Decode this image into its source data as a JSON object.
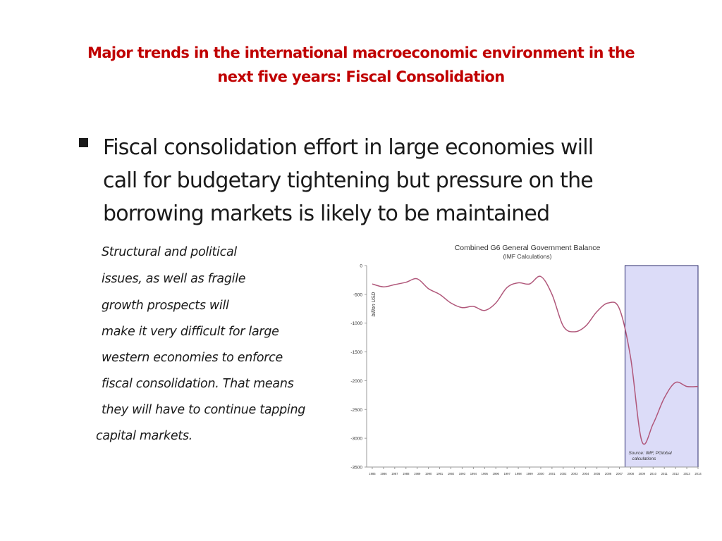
{
  "slide": {
    "title_line1": "Major trends in the international macroeconomic environment in the",
    "title_line2": "next five years:  Fiscal Consolidation",
    "bullet_line1": "Fiscal consolidation effort in large economies will",
    "bullet_line2": "call for budgetary tightening but pressure on the",
    "bullet_line3": "borrowing markets  is likely to be maintained",
    "body_lines": [
      "Structural and political",
      "issues, as well as fragile",
      "growth prospects will",
      "make it very difficult for large",
      "western economies to enforce",
      "fiscal consolidation. That means",
      "they will have to continue tapping",
      "capital markets."
    ]
  },
  "colors": {
    "title": "#c00000",
    "line": "#b0577a",
    "forecast_fill": "#dcdcf8",
    "forecast_border": "#2b2b6b"
  },
  "chart_data": {
    "type": "line",
    "title": "Combined G6 General Government Balance",
    "subtitle": "(IMF Calculations)",
    "ylabel": "billion USD",
    "ylim": [
      -3500,
      0
    ],
    "yticks": [
      "0",
      "-500",
      "-1000",
      "-1500",
      "-2000",
      "-2500",
      "-3000",
      "-3500"
    ],
    "ytick_values": [
      0,
      -500,
      -1000,
      -1500,
      -2000,
      -2500,
      -3000,
      -3500
    ],
    "categories": [
      "1985",
      "1986",
      "1987",
      "1988",
      "1989",
      "1990",
      "1991",
      "1992",
      "1993",
      "1994",
      "1995",
      "1996",
      "1997",
      "1998",
      "1999",
      "2000",
      "2001",
      "2002",
      "2003",
      "2004",
      "2005",
      "2006",
      "2007",
      "2008",
      "2009",
      "2010",
      "2011",
      "2012",
      "2013",
      "2014"
    ],
    "series": [
      {
        "values": [
          -320,
          -370,
          -330,
          -290,
          -230,
          -400,
          -500,
          -650,
          -730,
          -710,
          -780,
          -650,
          -380,
          -300,
          -320,
          -190,
          -500,
          -1050,
          -1150,
          -1050,
          -800,
          -650,
          -750,
          -1600,
          -3050,
          -2750,
          -2300,
          -2030,
          -2100,
          -2100
        ]
      }
    ],
    "annotation": "Source: IMF, PGlobal calculations",
    "shaded_range": [
      "2007",
      "2014"
    ]
  }
}
